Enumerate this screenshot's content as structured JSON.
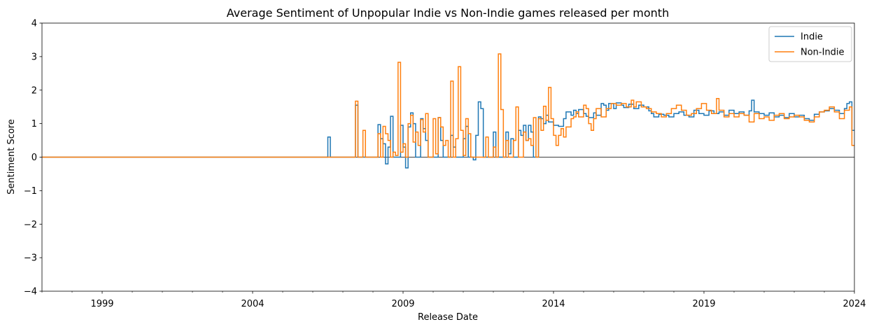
{
  "chart_data": {
    "type": "line",
    "drawstyle": "steps-post",
    "title": "Average Sentiment of Unpopular Indie vs Non-Indie games released per month",
    "xlabel": "Release Date",
    "ylabel": "Sentiment Score",
    "xlim": [
      "1997-01",
      "2024-01"
    ],
    "ylim": [
      -4,
      4
    ],
    "x_major_ticks": [
      "1999",
      "2004",
      "2009",
      "2014",
      "2019",
      "2024"
    ],
    "y_ticks": [
      4,
      3,
      2,
      1,
      0,
      -1,
      -2,
      -3,
      -4
    ],
    "y_tick_labels": [
      "4",
      "3",
      "2",
      "1",
      "0",
      "−1",
      "−2",
      "−3",
      "−4"
    ],
    "zero_line": true,
    "grid": false,
    "legend_position": "top-right",
    "series": [
      {
        "name": "Indie",
        "color": "#1f77b4",
        "points": [
          [
            "1997-01",
            0
          ],
          [
            "2006-06",
            0
          ],
          [
            "2006-07",
            0.6
          ],
          [
            "2006-08",
            0
          ],
          [
            "2007-05",
            0
          ],
          [
            "2007-06",
            1.55
          ],
          [
            "2007-07",
            0
          ],
          [
            "2008-02",
            0
          ],
          [
            "2008-03",
            0.97
          ],
          [
            "2008-04",
            0.55
          ],
          [
            "2008-05",
            0.4
          ],
          [
            "2008-06",
            -0.2
          ],
          [
            "2008-07",
            0.3
          ],
          [
            "2008-08",
            1.22
          ],
          [
            "2008-09",
            0
          ],
          [
            "2008-12",
            0.95
          ],
          [
            "2009-01",
            0.3
          ],
          [
            "2009-02",
            -0.32
          ],
          [
            "2009-03",
            0.9
          ],
          [
            "2009-04",
            1.32
          ],
          [
            "2009-05",
            1.0
          ],
          [
            "2009-06",
            0
          ],
          [
            "2009-08",
            1.15
          ],
          [
            "2009-09",
            0.85
          ],
          [
            "2009-10",
            0.5
          ],
          [
            "2009-11",
            0.0
          ],
          [
            "2010-03",
            1.18
          ],
          [
            "2010-04",
            0.5
          ],
          [
            "2010-05",
            0
          ],
          [
            "2010-08",
            0.65
          ],
          [
            "2010-09",
            0.3
          ],
          [
            "2010-10",
            0
          ],
          [
            "2011-01",
            0.55
          ],
          [
            "2011-02",
            0.92
          ],
          [
            "2011-03",
            0
          ],
          [
            "2011-05",
            -0.08
          ],
          [
            "2011-06",
            0.65
          ],
          [
            "2011-07",
            1.65
          ],
          [
            "2011-08",
            1.45
          ],
          [
            "2011-09",
            0
          ],
          [
            "2012-01",
            0.75
          ],
          [
            "2012-02",
            0
          ],
          [
            "2012-06",
            0.75
          ],
          [
            "2012-07",
            0.1
          ],
          [
            "2012-08",
            0.55
          ],
          [
            "2012-09",
            0
          ],
          [
            "2012-11",
            0.8
          ],
          [
            "2012-12",
            0.65
          ],
          [
            "2013-01",
            0.95
          ],
          [
            "2013-02",
            0.5
          ],
          [
            "2013-03",
            0.95
          ],
          [
            "2013-04",
            0.75
          ],
          [
            "2013-05",
            0.0
          ],
          [
            "2013-07",
            1.2
          ],
          [
            "2013-08",
            1.15
          ],
          [
            "2013-09",
            1.0
          ],
          [
            "2013-10",
            1.25
          ],
          [
            "2013-11",
            1.05
          ],
          [
            "2014-01",
            0.95
          ],
          [
            "2014-03",
            0.92
          ],
          [
            "2014-05",
            1.15
          ],
          [
            "2014-06",
            1.35
          ],
          [
            "2014-08",
            1.25
          ],
          [
            "2014-09",
            1.4
          ],
          [
            "2014-10",
            1.3
          ],
          [
            "2014-11",
            1.42
          ],
          [
            "2015-01",
            1.3
          ],
          [
            "2015-02",
            1.22
          ],
          [
            "2015-03",
            1.18
          ],
          [
            "2015-05",
            1.32
          ],
          [
            "2015-06",
            1.25
          ],
          [
            "2015-08",
            1.6
          ],
          [
            "2015-09",
            1.55
          ],
          [
            "2015-10",
            1.4
          ],
          [
            "2015-11",
            1.6
          ],
          [
            "2016-01",
            1.45
          ],
          [
            "2016-02",
            1.62
          ],
          [
            "2016-04",
            1.55
          ],
          [
            "2016-05",
            1.48
          ],
          [
            "2016-07",
            1.58
          ],
          [
            "2016-09",
            1.45
          ],
          [
            "2016-11",
            1.55
          ],
          [
            "2017-01",
            1.5
          ],
          [
            "2017-03",
            1.38
          ],
          [
            "2017-04",
            1.3
          ],
          [
            "2017-05",
            1.2
          ],
          [
            "2017-07",
            1.28
          ],
          [
            "2017-09",
            1.25
          ],
          [
            "2017-11",
            1.2
          ],
          [
            "2018-01",
            1.3
          ],
          [
            "2018-03",
            1.35
          ],
          [
            "2018-05",
            1.25
          ],
          [
            "2018-07",
            1.2
          ],
          [
            "2018-09",
            1.4
          ],
          [
            "2018-11",
            1.3
          ],
          [
            "2019-01",
            1.25
          ],
          [
            "2019-03",
            1.38
          ],
          [
            "2019-05",
            1.3
          ],
          [
            "2019-07",
            1.35
          ],
          [
            "2019-09",
            1.25
          ],
          [
            "2019-11",
            1.4
          ],
          [
            "2020-01",
            1.3
          ],
          [
            "2020-03",
            1.35
          ],
          [
            "2020-05",
            1.25
          ],
          [
            "2020-07",
            1.38
          ],
          [
            "2020-08",
            1.7
          ],
          [
            "2020-09",
            1.35
          ],
          [
            "2020-11",
            1.3
          ],
          [
            "2021-01",
            1.25
          ],
          [
            "2021-03",
            1.32
          ],
          [
            "2021-05",
            1.2
          ],
          [
            "2021-07",
            1.25
          ],
          [
            "2021-09",
            1.18
          ],
          [
            "2021-11",
            1.3
          ],
          [
            "2022-01",
            1.2
          ],
          [
            "2022-03",
            1.25
          ],
          [
            "2022-05",
            1.15
          ],
          [
            "2022-07",
            1.1
          ],
          [
            "2022-09",
            1.28
          ],
          [
            "2022-11",
            1.35
          ],
          [
            "2023-01",
            1.38
          ],
          [
            "2023-03",
            1.45
          ],
          [
            "2023-05",
            1.4
          ],
          [
            "2023-07",
            1.3
          ],
          [
            "2023-09",
            1.45
          ],
          [
            "2023-10",
            1.6
          ],
          [
            "2023-11",
            1.65
          ],
          [
            "2023-12",
            0.8
          ],
          [
            "2024-01",
            0.8
          ]
        ]
      },
      {
        "name": "Non-Indie",
        "color": "#ff7f0e",
        "points": [
          [
            "1997-01",
            0
          ],
          [
            "2007-05",
            0
          ],
          [
            "2007-06",
            1.67
          ],
          [
            "2007-07",
            0
          ],
          [
            "2007-09",
            0.8
          ],
          [
            "2007-10",
            0
          ],
          [
            "2008-03",
            0.7
          ],
          [
            "2008-04",
            0
          ],
          [
            "2008-05",
            0.92
          ],
          [
            "2008-06",
            0.7
          ],
          [
            "2008-07",
            0.5
          ],
          [
            "2008-08",
            0
          ],
          [
            "2008-09",
            0.15
          ],
          [
            "2008-10",
            0.05
          ],
          [
            "2008-11",
            2.83
          ],
          [
            "2008-12",
            0.15
          ],
          [
            "2009-01",
            0.4
          ],
          [
            "2009-02",
            0
          ],
          [
            "2009-03",
            1.0
          ],
          [
            "2009-04",
            1.25
          ],
          [
            "2009-05",
            0.45
          ],
          [
            "2009-06",
            0.75
          ],
          [
            "2009-07",
            0.35
          ],
          [
            "2009-08",
            1.12
          ],
          [
            "2009-09",
            0.75
          ],
          [
            "2009-10",
            1.3
          ],
          [
            "2009-11",
            0.0
          ],
          [
            "2010-01",
            1.15
          ],
          [
            "2010-02",
            0.1
          ],
          [
            "2010-03",
            1.18
          ],
          [
            "2010-04",
            0.9
          ],
          [
            "2010-05",
            0.35
          ],
          [
            "2010-06",
            0.5
          ],
          [
            "2010-07",
            0
          ],
          [
            "2010-08",
            2.27
          ],
          [
            "2010-09",
            0
          ],
          [
            "2010-10",
            0.55
          ],
          [
            "2010-11",
            2.7
          ],
          [
            "2010-12",
            0.8
          ],
          [
            "2011-01",
            0.05
          ],
          [
            "2011-02",
            1.15
          ],
          [
            "2011-03",
            0.7
          ],
          [
            "2011-04",
            0
          ],
          [
            "2011-10",
            0.6
          ],
          [
            "2011-11",
            0.0
          ],
          [
            "2012-01",
            0.3
          ],
          [
            "2012-02",
            0
          ],
          [
            "2012-03",
            3.08
          ],
          [
            "2012-04",
            1.42
          ],
          [
            "2012-05",
            0
          ],
          [
            "2012-06",
            0.5
          ],
          [
            "2012-07",
            0
          ],
          [
            "2012-09",
            0.5
          ],
          [
            "2012-10",
            1.5
          ],
          [
            "2012-11",
            0
          ],
          [
            "2013-01",
            0.75
          ],
          [
            "2013-02",
            0.5
          ],
          [
            "2013-03",
            0.55
          ],
          [
            "2013-04",
            0.35
          ],
          [
            "2013-05",
            1.18
          ],
          [
            "2013-06",
            0
          ],
          [
            "2013-07",
            1.15
          ],
          [
            "2013-08",
            0.8
          ],
          [
            "2013-09",
            1.52
          ],
          [
            "2013-10",
            1.1
          ],
          [
            "2013-11",
            2.08
          ],
          [
            "2013-12",
            1.15
          ],
          [
            "2014-01",
            0.65
          ],
          [
            "2014-02",
            0.35
          ],
          [
            "2014-03",
            0.65
          ],
          [
            "2014-04",
            0.85
          ],
          [
            "2014-05",
            0.6
          ],
          [
            "2014-06",
            0.9
          ],
          [
            "2014-08",
            1.15
          ],
          [
            "2014-09",
            1.2
          ],
          [
            "2014-10",
            1.35
          ],
          [
            "2014-11",
            1.2
          ],
          [
            "2015-01",
            1.55
          ],
          [
            "2015-02",
            1.45
          ],
          [
            "2015-03",
            1.0
          ],
          [
            "2015-04",
            0.8
          ],
          [
            "2015-05",
            1.15
          ],
          [
            "2015-06",
            1.45
          ],
          [
            "2015-08",
            1.2
          ],
          [
            "2015-10",
            1.45
          ],
          [
            "2015-12",
            1.6
          ],
          [
            "2016-02",
            1.55
          ],
          [
            "2016-04",
            1.6
          ],
          [
            "2016-06",
            1.5
          ],
          [
            "2016-08",
            1.7
          ],
          [
            "2016-09",
            1.5
          ],
          [
            "2016-10",
            1.65
          ],
          [
            "2016-12",
            1.5
          ],
          [
            "2017-02",
            1.45
          ],
          [
            "2017-04",
            1.35
          ],
          [
            "2017-06",
            1.3
          ],
          [
            "2017-08",
            1.2
          ],
          [
            "2017-10",
            1.3
          ],
          [
            "2017-12",
            1.45
          ],
          [
            "2018-02",
            1.55
          ],
          [
            "2018-04",
            1.4
          ],
          [
            "2018-06",
            1.25
          ],
          [
            "2018-08",
            1.3
          ],
          [
            "2018-10",
            1.45
          ],
          [
            "2018-12",
            1.6
          ],
          [
            "2019-02",
            1.4
          ],
          [
            "2019-04",
            1.3
          ],
          [
            "2019-06",
            1.75
          ],
          [
            "2019-07",
            1.4
          ],
          [
            "2019-09",
            1.2
          ],
          [
            "2019-11",
            1.3
          ],
          [
            "2020-01",
            1.2
          ],
          [
            "2020-03",
            1.3
          ],
          [
            "2020-05",
            1.25
          ],
          [
            "2020-07",
            1.05
          ],
          [
            "2020-09",
            1.3
          ],
          [
            "2020-11",
            1.15
          ],
          [
            "2021-01",
            1.2
          ],
          [
            "2021-03",
            1.1
          ],
          [
            "2021-05",
            1.25
          ],
          [
            "2021-07",
            1.3
          ],
          [
            "2021-09",
            1.15
          ],
          [
            "2021-11",
            1.2
          ],
          [
            "2022-01",
            1.25
          ],
          [
            "2022-03",
            1.2
          ],
          [
            "2022-05",
            1.1
          ],
          [
            "2022-07",
            1.05
          ],
          [
            "2022-09",
            1.2
          ],
          [
            "2022-11",
            1.35
          ],
          [
            "2023-01",
            1.4
          ],
          [
            "2023-03",
            1.5
          ],
          [
            "2023-05",
            1.35
          ],
          [
            "2023-07",
            1.15
          ],
          [
            "2023-09",
            1.4
          ],
          [
            "2023-11",
            1.5
          ],
          [
            "2023-12",
            0.35
          ],
          [
            "2024-01",
            0.35
          ]
        ]
      }
    ]
  }
}
